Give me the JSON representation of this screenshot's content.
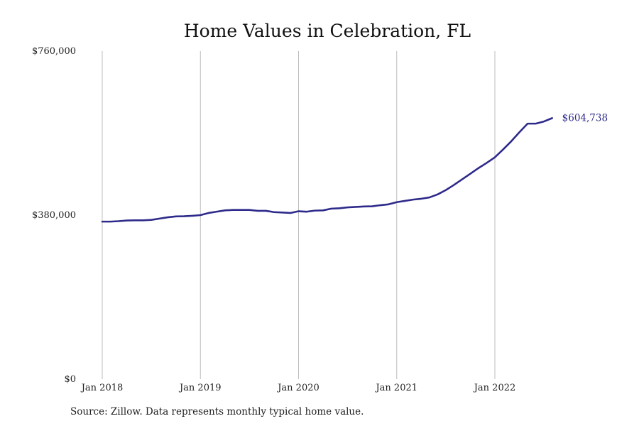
{
  "chart_data": {
    "type": "line",
    "title": "Home Values in Celebration, FL",
    "xlabel": "",
    "ylabel": "",
    "y_ticks": [
      "$0",
      "$380,000",
      "$760,000"
    ],
    "y_tick_values": [
      0,
      380000,
      760000
    ],
    "ylim": [
      0,
      760000
    ],
    "x_ticks": [
      "Jan 2018",
      "Jan 2019",
      "Jan 2020",
      "Jan 2021",
      "Jan 2022"
    ],
    "x_tick_values": [
      "2018-01",
      "2019-01",
      "2020-01",
      "2021-01",
      "2022-01"
    ],
    "xlim": [
      "2018-01",
      "2022-08"
    ],
    "grid": "vertical",
    "legend": "none",
    "line_color": "#2e2a8a",
    "grid_color": "#bdbdbd",
    "series": [
      {
        "x": [
          "2018-01",
          "2018-02",
          "2018-03",
          "2018-04",
          "2018-05",
          "2018-06",
          "2018-07",
          "2018-08",
          "2018-09",
          "2018-10",
          "2018-11",
          "2018-12",
          "2019-01",
          "2019-02",
          "2019-03",
          "2019-04",
          "2019-05",
          "2019-06",
          "2019-07",
          "2019-08",
          "2019-09",
          "2019-10",
          "2019-11",
          "2019-12",
          "2020-01",
          "2020-02",
          "2020-03",
          "2020-04",
          "2020-05",
          "2020-06",
          "2020-07",
          "2020-08",
          "2020-09",
          "2020-10",
          "2020-11",
          "2020-12",
          "2021-01",
          "2021-02",
          "2021-03",
          "2021-04",
          "2021-05",
          "2021-06",
          "2021-07",
          "2021-08",
          "2021-09",
          "2021-10",
          "2021-11",
          "2021-12",
          "2022-01",
          "2022-02",
          "2022-03",
          "2022-04",
          "2022-05",
          "2022-06",
          "2022-07",
          "2022-08"
        ],
        "values": [
          365000,
          365000,
          366000,
          367500,
          368000,
          368000,
          369000,
          372000,
          375000,
          377000,
          377500,
          378500,
          380000,
          385000,
          388000,
          391000,
          392000,
          392000,
          392000,
          390000,
          390000,
          387000,
          386000,
          385000,
          389000,
          388000,
          390500,
          391000,
          395000,
          396000,
          398000,
          399000,
          400000,
          400500,
          403000,
          405000,
          410000,
          413000,
          416000,
          418000,
          421000,
          428000,
          438000,
          450000,
          463000,
          476000,
          489000,
          501000,
          514000,
          532000,
          551000,
          572000,
          592000,
          592000,
          597000,
          604738
        ]
      }
    ],
    "annotations": [
      {
        "x": "2022-08",
        "y": 604738,
        "text": "$604,738"
      }
    ]
  },
  "footer": {
    "source": "Source: Zillow. Data represents monthly typical home value."
  }
}
